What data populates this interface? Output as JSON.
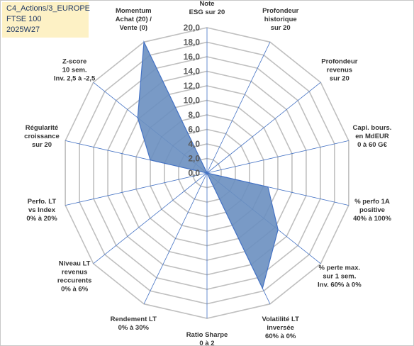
{
  "info": {
    "line1": "C4_Actions/3_EUROPE",
    "line2": "FTSE 100",
    "line3": "2025W27"
  },
  "colors": {
    "series_fill": "#6a8fc0",
    "series_stroke": "#4472c4",
    "axis_line": "#4472c4",
    "grid": "#bfbfbf",
    "info_bg": "#fdf1c5"
  },
  "chart_data": {
    "type": "radar",
    "categories": [
      [
        "Note",
        "ESG sur 20"
      ],
      [
        "Profondeur",
        "historique",
        "sur 20"
      ],
      [
        "Profondeur",
        "revenus",
        "sur 20"
      ],
      [
        "Capi. bours.",
        "en MdEUR",
        "0 à 60 G€"
      ],
      [
        "% perfo 1A",
        "positive",
        "40% à 100%"
      ],
      [
        "% perte max.",
        "sur 1 sem.",
        "Inv. 60% à 0%"
      ],
      [
        "Volatilité LT",
        "inversée",
        "60% à 0%"
      ],
      [
        "Ratio Sharpe",
        "0 à 2"
      ],
      [
        "Rendement LT",
        "0% à 30%"
      ],
      [
        "Niveau LT",
        "revenus",
        "reccurents",
        "0% à 6%"
      ],
      [
        "Perfo. LT",
        "vs Index",
        "0% à 20%"
      ],
      [
        "Régularité",
        "croissance",
        "sur 20"
      ],
      [
        "Z-score",
        "10 sem.",
        "Inv. 2,5 à -2,5"
      ],
      [
        "Momentum",
        "Achat (20) /",
        "Vente (0)"
      ]
    ],
    "values": [
      0,
      0,
      0,
      0,
      8.6,
      12.5,
      17.6,
      0,
      0,
      0,
      0,
      8.0,
      12.2,
      20.0
    ],
    "rlim": [
      0,
      20
    ],
    "ticks": [
      "0,0",
      "2,0",
      "4,0",
      "6,0",
      "8,0",
      "10,0",
      "12,0",
      "14,0",
      "16,0",
      "18,0",
      "20,0"
    ],
    "grid": true,
    "legend": "none"
  }
}
